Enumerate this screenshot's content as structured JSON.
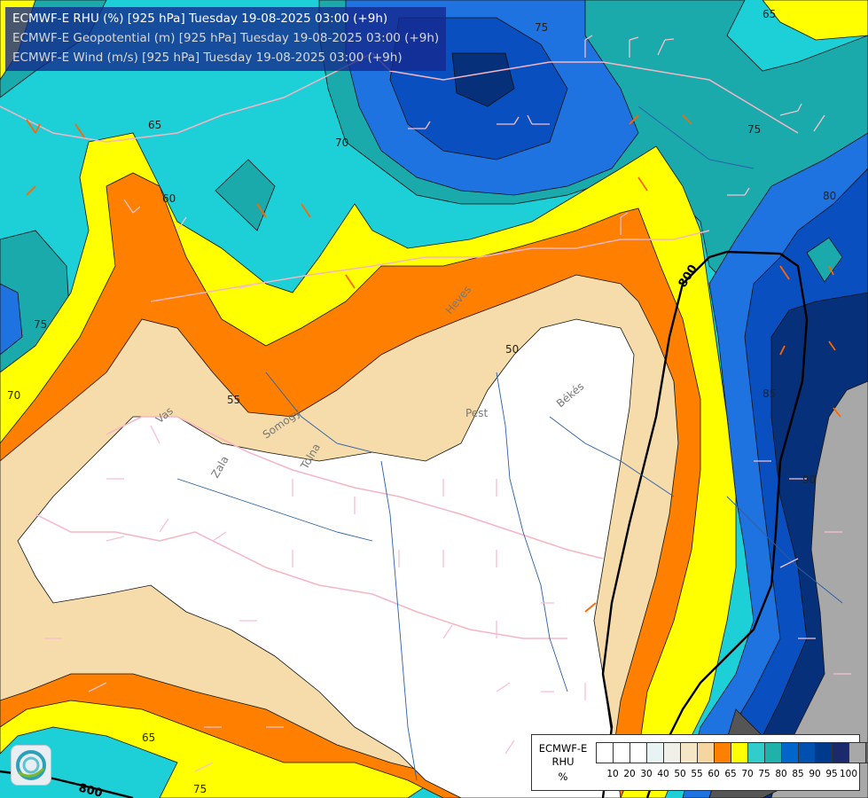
{
  "titles": [
    {
      "text": "ECMWF-E RHU (%) [925 hPa] Tuesday 19-08-2025 03:00 (+9h)",
      "color": "#ffffff"
    },
    {
      "text": "ECMWF-E Geopotential (m) [925 hPa] Tuesday 19-08-2025 03:00 (+9h)",
      "color": "#d8d8d8"
    },
    {
      "text": "ECMWF-E Wind (m/s) [925 hPa] Tuesday 19-08-2025 03:00 (+9h)",
      "color": "#d8d8d8"
    }
  ],
  "legend": {
    "title_lines": [
      "ECMWF-E",
      "RHU",
      "%"
    ],
    "colors": [
      "#ffffff",
      "#ffffff",
      "#ffffff",
      "#e8f4f4",
      "#f0f0e8",
      "#f5e6c8",
      "#f5d6a0",
      "#ff8000",
      "#ffff00",
      "#33cccc",
      "#20b2aa",
      "#0066cc",
      "#0050b0",
      "#003a8c",
      "#1a2a6c",
      "#a8a8a8",
      "#666666"
    ],
    "ticks": [
      "10",
      "20",
      "30",
      "40",
      "50",
      "55",
      "60",
      "65",
      "70",
      "75",
      "80",
      "85",
      "90",
      "95",
      "100"
    ]
  },
  "colors": {
    "white": "#ffffff",
    "wheat": "#f6dcaa",
    "orange": "#ff8000",
    "yellow": "#ffff00",
    "cyan": "#1dcfd6",
    "teal": "#1aaaab",
    "blue": "#1f73e0",
    "midblue": "#0a4fc0",
    "navy": "#06307a",
    "grey": "#a8a8a8",
    "darkgrey": "#555555",
    "border": "#f5b5c5",
    "river": "#2a5fa8"
  },
  "contour_labels": [
    "65",
    "75",
    "70",
    "60",
    "65",
    "75",
    "70",
    "55",
    "50",
    "80",
    "85",
    "90",
    "75",
    "65",
    "75"
  ],
  "geopotential_labels": [
    "800",
    "800"
  ],
  "place_names": [
    "Heves",
    "Pest",
    "Békés",
    "Vas",
    "Somogy",
    "Zala",
    "Tolna"
  ]
}
